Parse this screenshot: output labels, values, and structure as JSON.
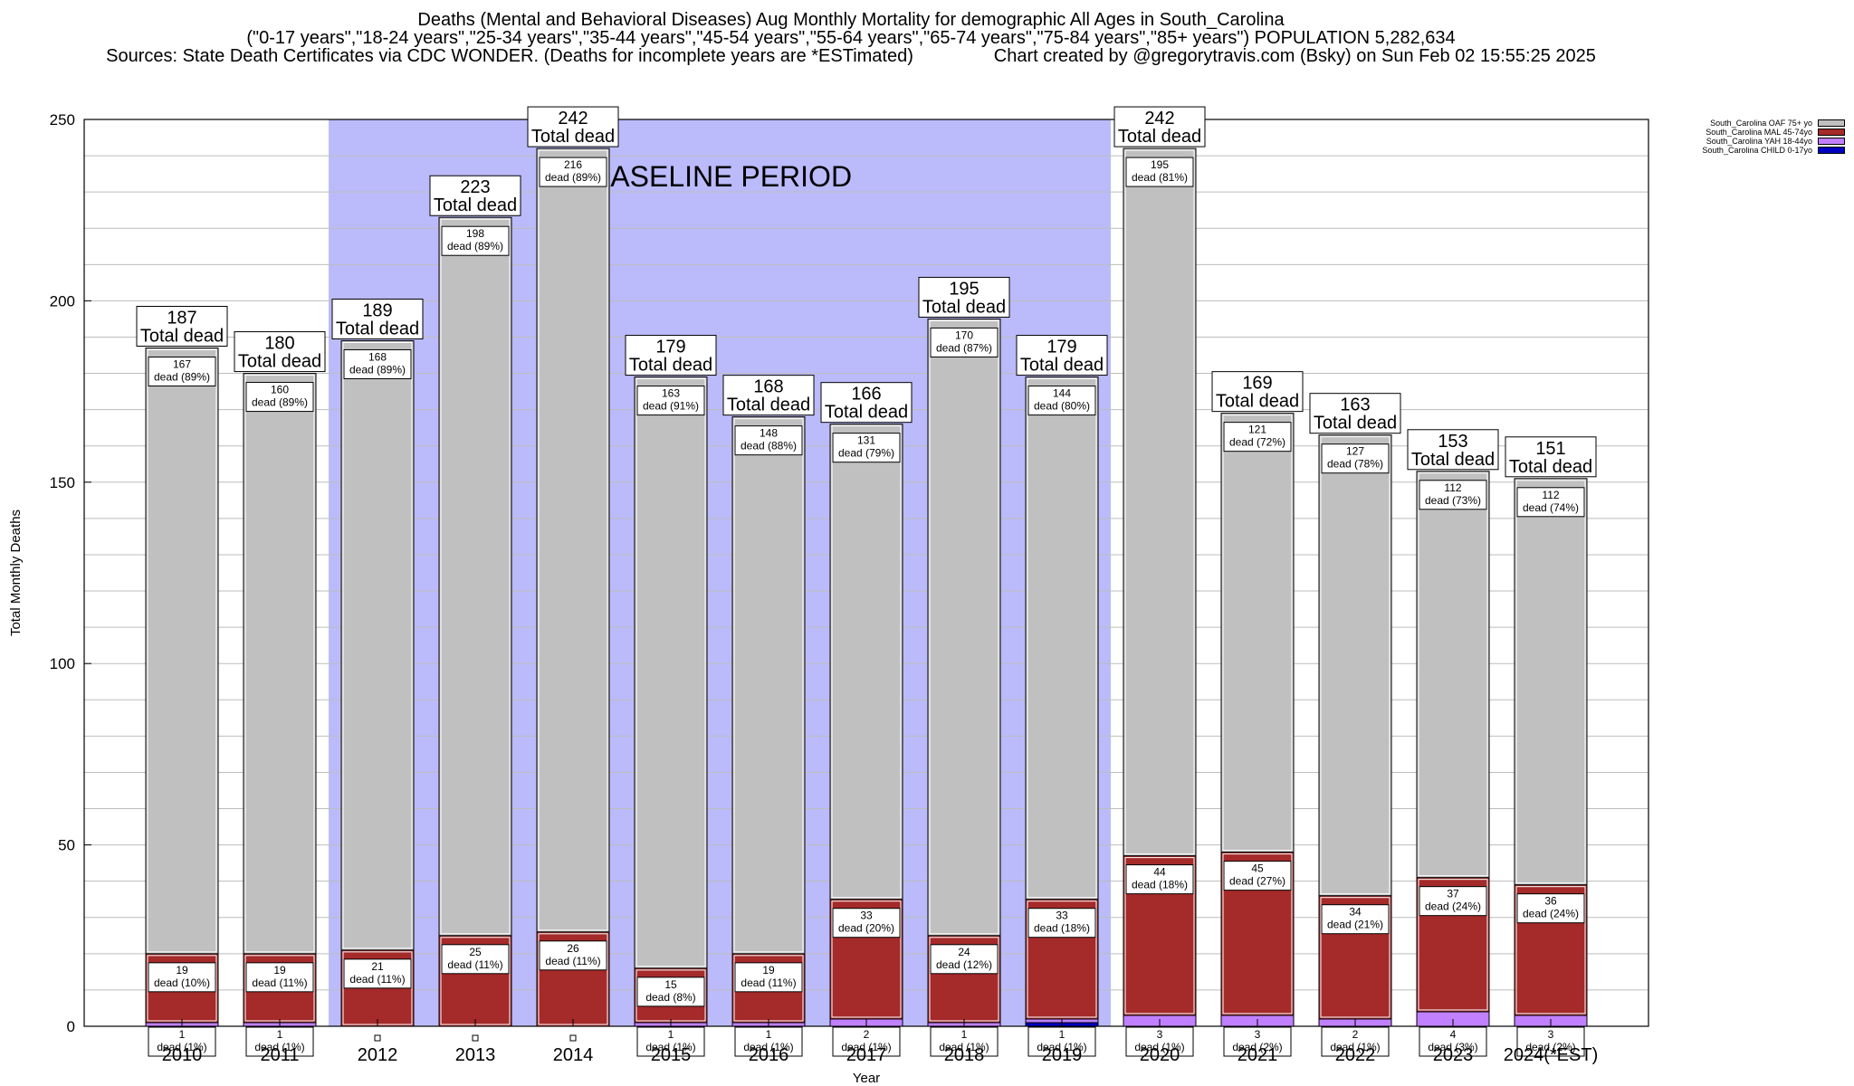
{
  "header": {
    "line1": "Deaths (Mental and Behavioral Diseases) Aug Monthly Mortality for demographic All Ages in South_Carolina",
    "line2": "(\"0-17 years\",\"18-24 years\",\"25-34 years\",\"35-44 years\",\"45-54 years\",\"55-64 years\",\"65-74 years\",\"75-84 years\",\"85+ years\") POPULATION 5,282,634",
    "line3": "Sources: State Death Certificates via CDC WONDER. (Deaths for incomplete years are *ESTimated)                Chart created by @gregorytravis.com (Bsky) on Sun Feb 02 15:55:25 2025"
  },
  "colors": {
    "baseline": "#bbbbfb",
    "oaf": "#c0c0c0",
    "mal": "#a52a2a",
    "yah": "#c080ff",
    "child": "#0000c0"
  },
  "chart_data": {
    "type": "bar",
    "stacked": true,
    "xlabel": "Year",
    "ylabel": "Total Monthly Deaths",
    "ylim": [
      0,
      250
    ],
    "yticks": [
      0,
      50,
      100,
      150,
      200,
      250
    ],
    "grid": true,
    "legend_position": "top-right",
    "baseline_label": "BASELINE PERIOD",
    "baseline_range": [
      "2012",
      "2019"
    ],
    "total_suffix": "Total dead",
    "categories": [
      "2010",
      "2011",
      "2012",
      "2013",
      "2014",
      "2015",
      "2016",
      "2017",
      "2018",
      "2019",
      "2020",
      "2021",
      "2022",
      "2023",
      "2024(*EST)"
    ],
    "totals": [
      187,
      180,
      189,
      223,
      242,
      179,
      168,
      166,
      195,
      179,
      242,
      169,
      163,
      153,
      151
    ],
    "series": [
      {
        "name": "South_Carolina CHILD 0-17yo",
        "color": "#0000c0",
        "values": [
          0,
          0,
          0,
          0,
          0,
          0,
          0,
          0,
          0,
          1,
          0,
          0,
          0,
          0,
          0
        ],
        "labels": [
          "",
          "",
          "",
          "",
          "",
          "",
          "",
          "",
          "",
          "",
          "",
          "",
          "",
          "",
          ""
        ]
      },
      {
        "name": "South_Carolina YAH 18-44yo",
        "color": "#c080ff",
        "values": [
          1,
          1,
          0,
          0,
          0,
          1,
          1,
          2,
          1,
          1,
          3,
          3,
          2,
          4,
          3
        ],
        "labels": [
          "1\ndead (1%)",
          "1\ndead (1%)",
          "",
          "",
          "",
          "1\ndead (1%)",
          "1\ndead (1%)",
          "2\ndead (1%)",
          "1\ndead (1%)",
          "1\ndead (1%)",
          "3\ndead (1%)",
          "3\ndead (2%)",
          "2\ndead (1%)",
          "4\ndead (3%)",
          "3\ndead (2%)"
        ]
      },
      {
        "name": "South_Carolina MAL 45-74yo",
        "color": "#a52a2a",
        "values": [
          19,
          19,
          21,
          25,
          26,
          15,
          19,
          33,
          24,
          33,
          44,
          45,
          34,
          37,
          36
        ],
        "labels": [
          "19\ndead (10%)",
          "19\ndead (11%)",
          "21\ndead (11%)",
          "25\ndead (11%)",
          "26\ndead (11%)",
          "15\ndead (8%)",
          "19\ndead (11%)",
          "33\ndead (20%)",
          "24\ndead (12%)",
          "33\ndead (18%)",
          "44\ndead (18%)",
          "45\ndead (27%)",
          "34\ndead (21%)",
          "37\ndead (24%)",
          "36\ndead (24%)"
        ]
      },
      {
        "name": "South_Carolina OAF 75+ yo",
        "color": "#c0c0c0",
        "values": [
          167,
          160,
          168,
          198,
          216,
          163,
          148,
          131,
          170,
          144,
          195,
          121,
          127,
          112,
          112
        ],
        "labels": [
          "167\ndead (89%)",
          "160\ndead (89%)",
          "168\ndead (89%)",
          "198\ndead (89%)",
          "216\ndead (89%)",
          "163\ndead (91%)",
          "148\ndead (88%)",
          "131\ndead (79%)",
          "170\ndead (87%)",
          "144\ndead (80%)",
          "195\ndead (81%)",
          "121\ndead (72%)",
          "127\ndead (78%)",
          "112\ndead (73%)",
          "112\ndead (74%)"
        ]
      }
    ]
  }
}
